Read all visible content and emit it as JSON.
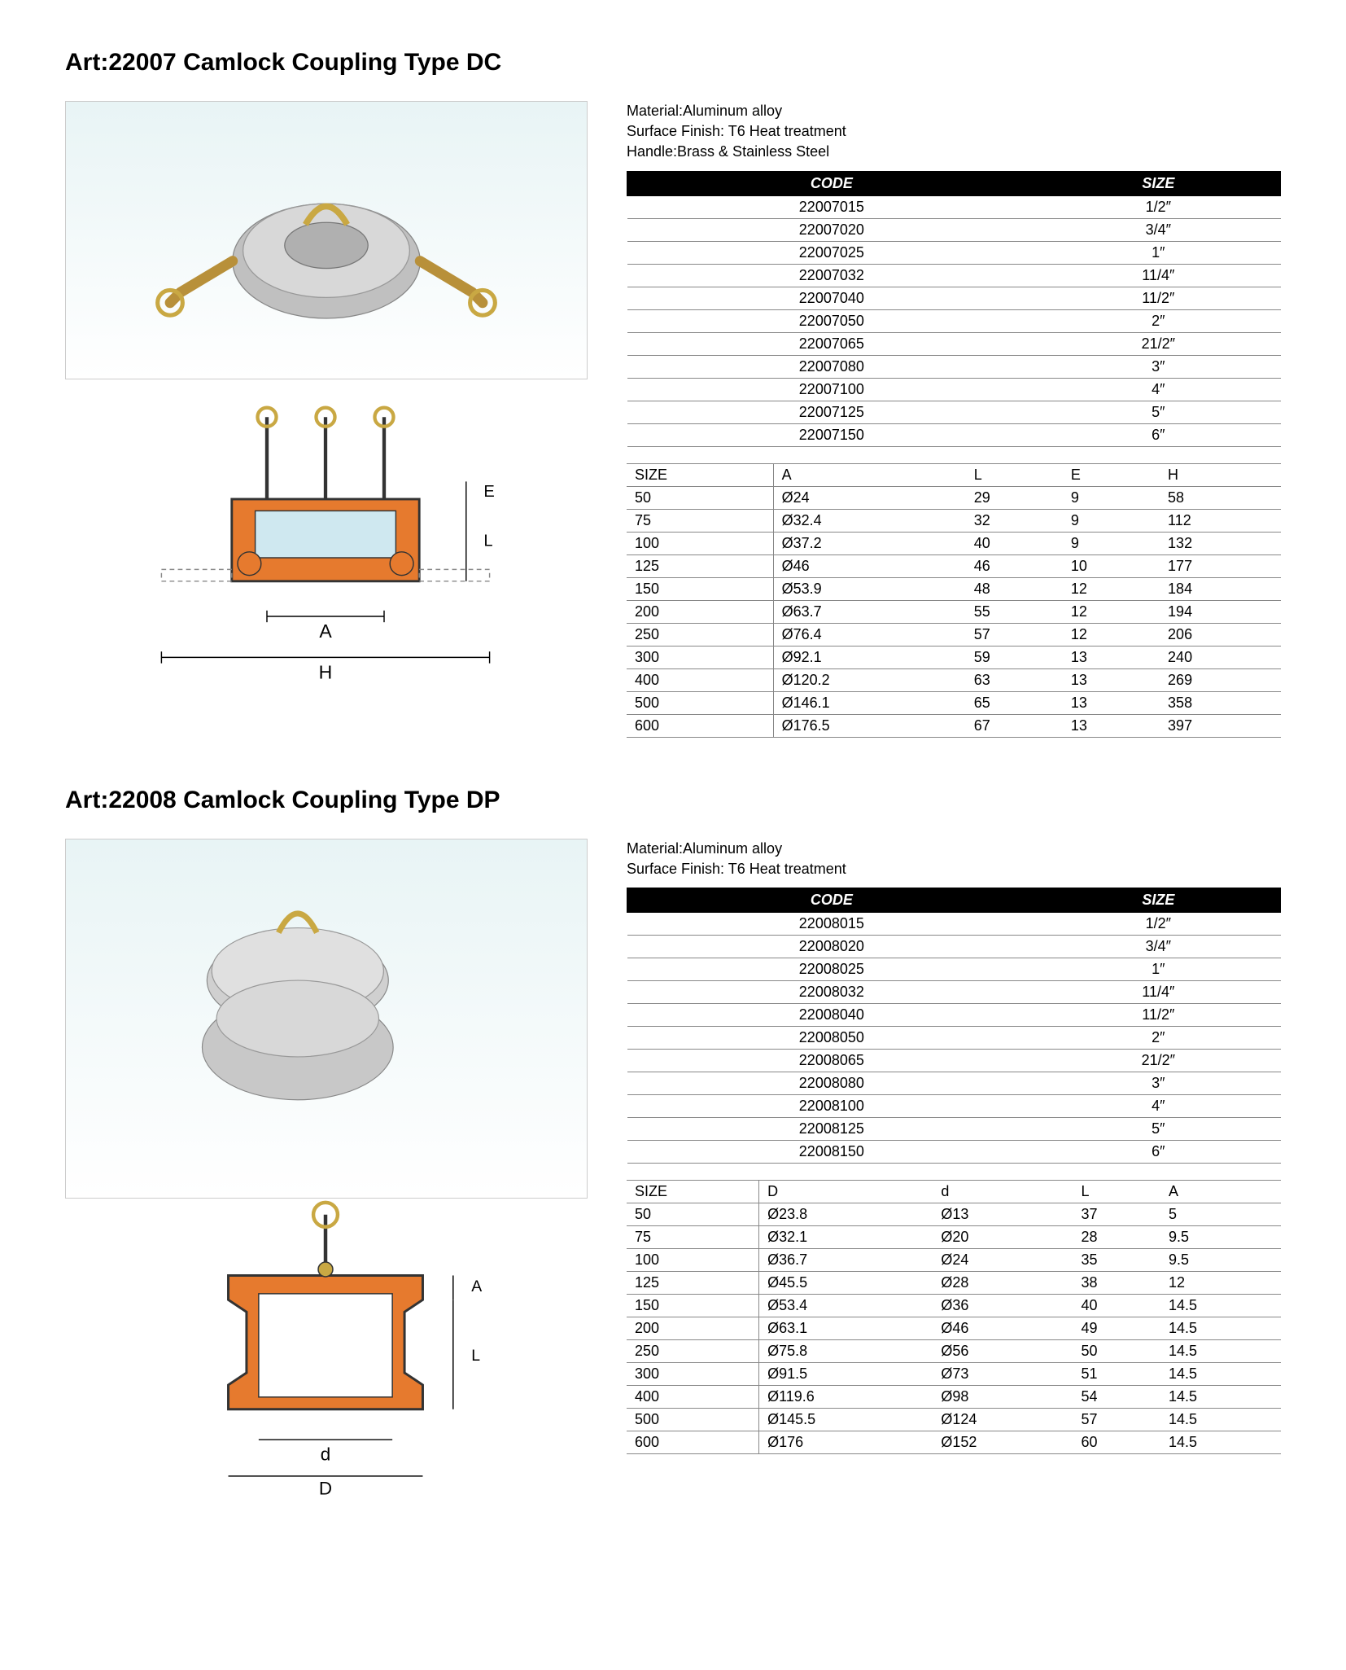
{
  "products": [
    {
      "title": "Art:22007  Camlock Coupling Type DC",
      "specs": [
        "Material:Aluminum alloy",
        "Surface Finish: T6 Heat treatment",
        "Handle:Brass & Stainless Steel"
      ],
      "code_table": {
        "headers": [
          "CODE",
          "SIZE"
        ],
        "rows": [
          [
            "22007015",
            "1/2″"
          ],
          [
            "22007020",
            "3/4″"
          ],
          [
            "22007025",
            "1″"
          ],
          [
            "22007032",
            "11/4″"
          ],
          [
            "22007040",
            "11/2″"
          ],
          [
            "22007050",
            "2″"
          ],
          [
            "22007065",
            "21/2″"
          ],
          [
            "22007080",
            "3″"
          ],
          [
            "22007100",
            "4″"
          ],
          [
            "22007125",
            "5″"
          ],
          [
            "22007150",
            "6″"
          ]
        ]
      },
      "dim_table": {
        "headers": [
          "SIZE",
          "A",
          "L",
          "E",
          "H"
        ],
        "rows": [
          [
            "50",
            "Ø24",
            "29",
            "9",
            "58"
          ],
          [
            "75",
            "Ø32.4",
            "32",
            "9",
            "112"
          ],
          [
            "100",
            "Ø37.2",
            "40",
            "9",
            "132"
          ],
          [
            "125",
            "Ø46",
            "46",
            "10",
            "177"
          ],
          [
            "150",
            "Ø53.9",
            "48",
            "12",
            "184"
          ],
          [
            "200",
            "Ø63.7",
            "55",
            "12",
            "194"
          ],
          [
            "250",
            "Ø76.4",
            "57",
            "12",
            "206"
          ],
          [
            "300",
            "Ø92.1",
            "59",
            "13",
            "240"
          ],
          [
            "400",
            "Ø120.2",
            "63",
            "13",
            "269"
          ],
          [
            "500",
            "Ø146.1",
            "65",
            "13",
            "358"
          ],
          [
            "600",
            "Ø176.5",
            "67",
            "13",
            "397"
          ]
        ]
      },
      "diagram_labels": [
        "A",
        "H",
        "E",
        "L"
      ],
      "colors": {
        "photo_bg_top": "#e8f4f5",
        "photo_bg_bottom": "#ffffff",
        "diagram_fill": "#e67a2e",
        "diagram_stroke": "#333",
        "diagram_inner": "#cfe8f0"
      }
    },
    {
      "title": "Art:22008  Camlock Coupling Type DP",
      "specs": [
        "Material:Aluminum alloy",
        "Surface Finish: T6 Heat treatment"
      ],
      "code_table": {
        "headers": [
          "CODE",
          "SIZE"
        ],
        "rows": [
          [
            "22008015",
            "1/2″"
          ],
          [
            "22008020",
            "3/4″"
          ],
          [
            "22008025",
            "1″"
          ],
          [
            "22008032",
            "11/4″"
          ],
          [
            "22008040",
            "11/2″"
          ],
          [
            "22008050",
            "2″"
          ],
          [
            "22008065",
            "21/2″"
          ],
          [
            "22008080",
            "3″"
          ],
          [
            "22008100",
            "4″"
          ],
          [
            "22008125",
            "5″"
          ],
          [
            "22008150",
            "6″"
          ]
        ]
      },
      "dim_table": {
        "headers": [
          "SIZE",
          "D",
          "d",
          "L",
          "A"
        ],
        "rows": [
          [
            "50",
            "Ø23.8",
            "Ø13",
            "37",
            "5"
          ],
          [
            "75",
            "Ø32.1",
            "Ø20",
            "28",
            "9.5"
          ],
          [
            "100",
            "Ø36.7",
            "Ø24",
            "35",
            "9.5"
          ],
          [
            "125",
            "Ø45.5",
            "Ø28",
            "38",
            "12"
          ],
          [
            "150",
            "Ø53.4",
            "Ø36",
            "40",
            "14.5"
          ],
          [
            "200",
            "Ø63.1",
            "Ø46",
            "49",
            "14.5"
          ],
          [
            "250",
            "Ø75.8",
            "Ø56",
            "50",
            "14.5"
          ],
          [
            "300",
            "Ø91.5",
            "Ø73",
            "51",
            "14.5"
          ],
          [
            "400",
            "Ø119.6",
            "Ø98",
            "54",
            "14.5"
          ],
          [
            "500",
            "Ø145.5",
            "Ø124",
            "57",
            "14.5"
          ],
          [
            "600",
            "Ø176",
            "Ø152",
            "60",
            "14.5"
          ]
        ]
      },
      "diagram_labels": [
        "d",
        "D",
        "A",
        "L"
      ],
      "colors": {
        "photo_bg_top": "#e8f4f5",
        "photo_bg_bottom": "#ffffff",
        "diagram_fill": "#e67a2e",
        "diagram_stroke": "#333",
        "diagram_inner": "#ffffff"
      }
    }
  ]
}
